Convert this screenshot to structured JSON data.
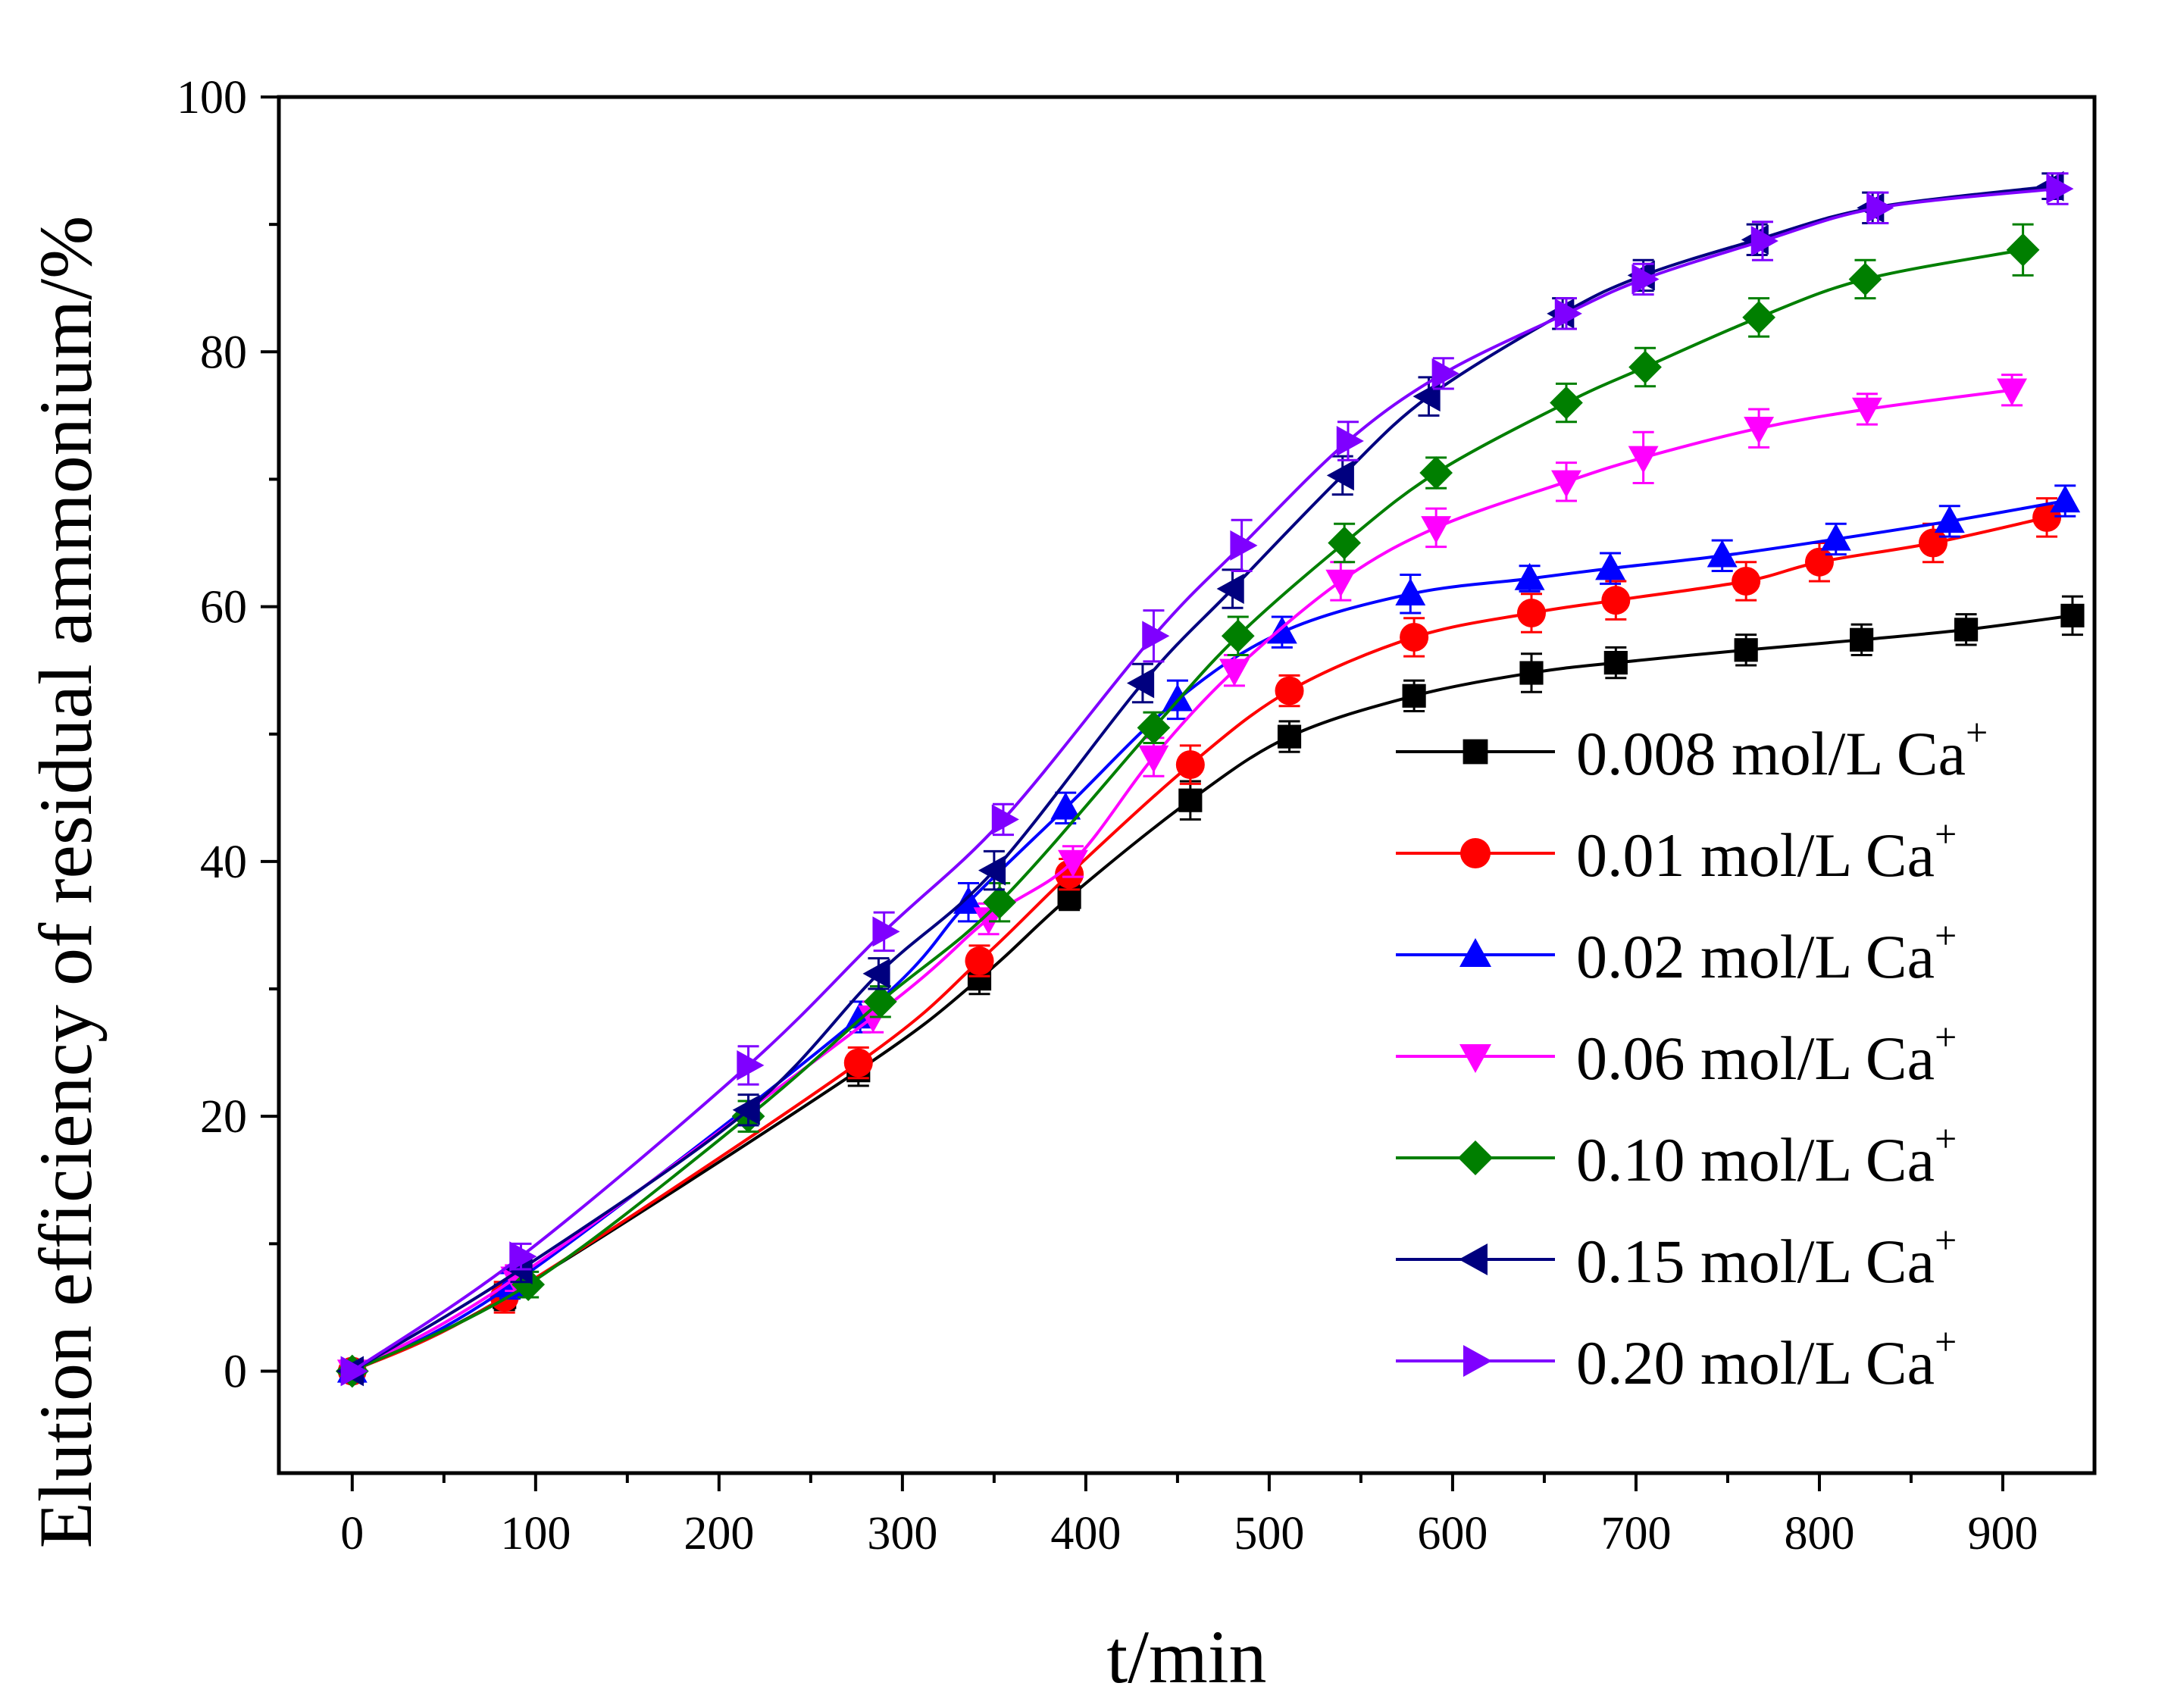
{
  "chart_data": {
    "type": "line",
    "title": "",
    "xlabel": "t/min",
    "ylabel": "Elution efficiency of residual ammonium/%",
    "xlim": [
      -40,
      950
    ],
    "ylim": [
      -8,
      100
    ],
    "xticks": [
      0,
      100,
      200,
      300,
      400,
      500,
      600,
      700,
      800,
      900
    ],
    "yticks": [
      0,
      20,
      40,
      60,
      80,
      100
    ],
    "grid": false,
    "legend_position": "lower-right",
    "series": [
      {
        "name": "0.008 mol/L Ca",
        "name_sup": "+",
        "color": "#000000",
        "marker": "square",
        "points": [
          [
            0,
            0
          ],
          [
            83,
            5.8
          ],
          [
            276,
            23.6
          ],
          [
            342,
            30.8
          ],
          [
            391,
            37.2
          ],
          [
            457,
            44.8
          ],
          [
            511,
            49.8
          ],
          [
            579,
            53.0
          ],
          [
            643,
            54.8
          ],
          [
            689,
            55.6
          ],
          [
            760,
            56.6
          ],
          [
            823,
            57.4
          ],
          [
            880,
            58.2
          ],
          [
            938,
            59.3
          ]
        ],
        "errors": [
          0,
          1.0,
          1.2,
          1.2,
          1.0,
          1.5,
          1.2,
          1.2,
          1.5,
          1.2,
          1.2,
          1.2,
          1.2,
          1.5
        ]
      },
      {
        "name": "0.01 mol/L Ca",
        "name_sup": "+",
        "color": "#ff0000",
        "marker": "circle",
        "points": [
          [
            0,
            0
          ],
          [
            83,
            5.8
          ],
          [
            276,
            24.2
          ],
          [
            342,
            32.2
          ],
          [
            391,
            39.0
          ],
          [
            457,
            47.6
          ],
          [
            511,
            53.4
          ],
          [
            579,
            57.6
          ],
          [
            643,
            59.5
          ],
          [
            689,
            60.5
          ],
          [
            760,
            62.0
          ],
          [
            800,
            63.5
          ],
          [
            862,
            65.0
          ],
          [
            924,
            67.0
          ]
        ],
        "errors": [
          0,
          1.2,
          1.2,
          1.2,
          1.2,
          1.5,
          1.2,
          1.5,
          1.5,
          1.5,
          1.5,
          1.5,
          1.5,
          1.5
        ]
      },
      {
        "name": "0.02 mol/L Ca",
        "name_sup": "+",
        "color": "#0000ff",
        "marker": "triangle-up",
        "points": [
          [
            0,
            0
          ],
          [
            86,
            6.7
          ],
          [
            277,
            27.8
          ],
          [
            336,
            36.8
          ],
          [
            389,
            44.2
          ],
          [
            450,
            52.7
          ],
          [
            507,
            58.0
          ],
          [
            577,
            61.0
          ],
          [
            642,
            62.2
          ],
          [
            686,
            63.0
          ],
          [
            747,
            64.0
          ],
          [
            809,
            65.3
          ],
          [
            871,
            66.7
          ],
          [
            934,
            68.3
          ]
        ],
        "errors": [
          0,
          1.0,
          1.2,
          1.5,
          1.2,
          1.5,
          1.2,
          1.5,
          1.0,
          1.2,
          1.2,
          1.2,
          1.2,
          1.2
        ]
      },
      {
        "name": "0.06 mol/L Ca",
        "name_sup": "+",
        "color": "#ff00ff",
        "marker": "triangle-down",
        "points": [
          [
            0,
            0
          ],
          [
            89,
            7.3
          ],
          [
            284,
            27.8
          ],
          [
            347,
            35.5
          ],
          [
            393,
            40.0
          ],
          [
            437,
            48.2
          ],
          [
            481,
            55.0
          ],
          [
            539,
            62.0
          ],
          [
            591,
            66.2
          ],
          [
            662,
            69.8
          ],
          [
            704,
            71.7
          ],
          [
            767,
            74.0
          ],
          [
            826,
            75.5
          ],
          [
            905,
            77.0
          ]
        ],
        "errors": [
          0,
          1.0,
          1.2,
          1.2,
          1.2,
          1.5,
          1.2,
          1.5,
          1.5,
          1.5,
          2.0,
          1.5,
          1.2,
          1.2
        ]
      },
      {
        "name": "0.10 mol/L Ca",
        "name_sup": "+",
        "color": "#007f00",
        "marker": "diamond",
        "points": [
          [
            0,
            0
          ],
          [
            96,
            6.8
          ],
          [
            216,
            20.0
          ],
          [
            288,
            29.0
          ],
          [
            353,
            36.8
          ],
          [
            437,
            50.5
          ],
          [
            483,
            57.7
          ],
          [
            541,
            65.0
          ],
          [
            591,
            70.5
          ],
          [
            662,
            76.0
          ],
          [
            705,
            78.8
          ],
          [
            767,
            82.7
          ],
          [
            825,
            85.7
          ],
          [
            911,
            88.0
          ]
        ],
        "errors": [
          0,
          1.0,
          1.2,
          1.2,
          1.5,
          1.2,
          1.5,
          1.5,
          1.2,
          1.5,
          1.5,
          1.5,
          1.5,
          2.0
        ]
      },
      {
        "name": "0.15 mol/L Ca",
        "name_sup": "+",
        "color": "#00007f",
        "marker": "triangle-left",
        "points": [
          [
            0,
            0
          ],
          [
            92,
            8.0
          ],
          [
            216,
            20.5
          ],
          [
            287,
            31.2
          ],
          [
            350,
            39.3
          ],
          [
            431,
            54.0
          ],
          [
            480,
            61.4
          ],
          [
            540,
            70.3
          ],
          [
            587,
            76.5
          ],
          [
            660,
            83.0
          ],
          [
            704,
            86.0
          ],
          [
            766,
            88.8
          ],
          [
            829,
            91.3
          ],
          [
            927,
            93.0
          ]
        ],
        "errors": [
          0,
          1.0,
          1.2,
          1.2,
          1.5,
          1.5,
          1.5,
          1.5,
          1.5,
          1.2,
          1.2,
          1.2,
          1.2,
          1.0
        ]
      },
      {
        "name": "0.20 mol/L Ca",
        "name_sup": "+",
        "color": "#7f00ff",
        "marker": "triangle-right",
        "points": [
          [
            0,
            0
          ],
          [
            92,
            9.0
          ],
          [
            216,
            24.0
          ],
          [
            290,
            34.5
          ],
          [
            355,
            43.3
          ],
          [
            437,
            57.7
          ],
          [
            485,
            64.8
          ],
          [
            543,
            73.0
          ],
          [
            595,
            78.3
          ],
          [
            662,
            83.0
          ],
          [
            704,
            85.7
          ],
          [
            769,
            88.7
          ],
          [
            832,
            91.3
          ],
          [
            930,
            92.8
          ]
        ],
        "errors": [
          0,
          1.0,
          1.5,
          1.5,
          1.2,
          2.0,
          2.0,
          1.5,
          1.2,
          1.2,
          1.2,
          1.5,
          1.2,
          1.2
        ]
      }
    ]
  }
}
